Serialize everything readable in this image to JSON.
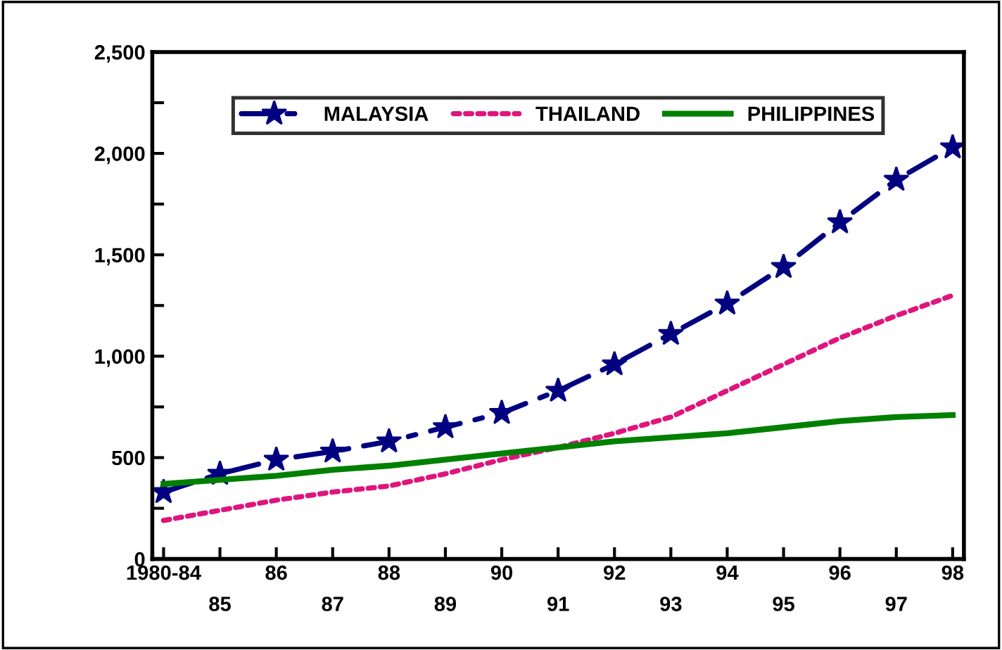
{
  "chart_data": {
    "type": "line",
    "categories": [
      "1980-84",
      "85",
      "86",
      "87",
      "88",
      "89",
      "90",
      "91",
      "92",
      "93",
      "94",
      "95",
      "96",
      "97",
      "98"
    ],
    "series": [
      {
        "name": "MALAYSIA",
        "color": "#000080",
        "marker": "star",
        "line_style": "dashed",
        "values": [
          330,
          420,
          490,
          530,
          580,
          650,
          720,
          830,
          960,
          1110,
          1260,
          1440,
          1660,
          1870,
          2030
        ]
      },
      {
        "name": "THAILAND",
        "color": "#e0147c",
        "marker": "none",
        "line_style": "dotted",
        "values": [
          190,
          240,
          290,
          330,
          360,
          420,
          490,
          550,
          620,
          700,
          830,
          960,
          1090,
          1200,
          1300
        ]
      },
      {
        "name": "PHILIPPINES",
        "color": "#008000",
        "marker": "none",
        "line_style": "solid",
        "values": [
          370,
          390,
          410,
          440,
          460,
          490,
          520,
          550,
          580,
          600,
          620,
          650,
          680,
          700,
          710
        ]
      }
    ],
    "ylim": [
      0,
      2500
    ],
    "yticks": [
      {
        "value": 0,
        "label": "0"
      },
      {
        "value": 250,
        "label": null
      },
      {
        "value": 500,
        "label": "500"
      },
      {
        "value": 750,
        "label": null
      },
      {
        "value": 1000,
        "label": "1,000"
      },
      {
        "value": 1250,
        "label": null
      },
      {
        "value": 1500,
        "label": "1,500"
      },
      {
        "value": 1750,
        "label": null
      },
      {
        "value": 2000,
        "label": "2,000"
      },
      {
        "value": 2250,
        "label": null
      },
      {
        "value": 2500,
        "label": "2,500"
      }
    ],
    "grid": false,
    "legend": "top"
  }
}
